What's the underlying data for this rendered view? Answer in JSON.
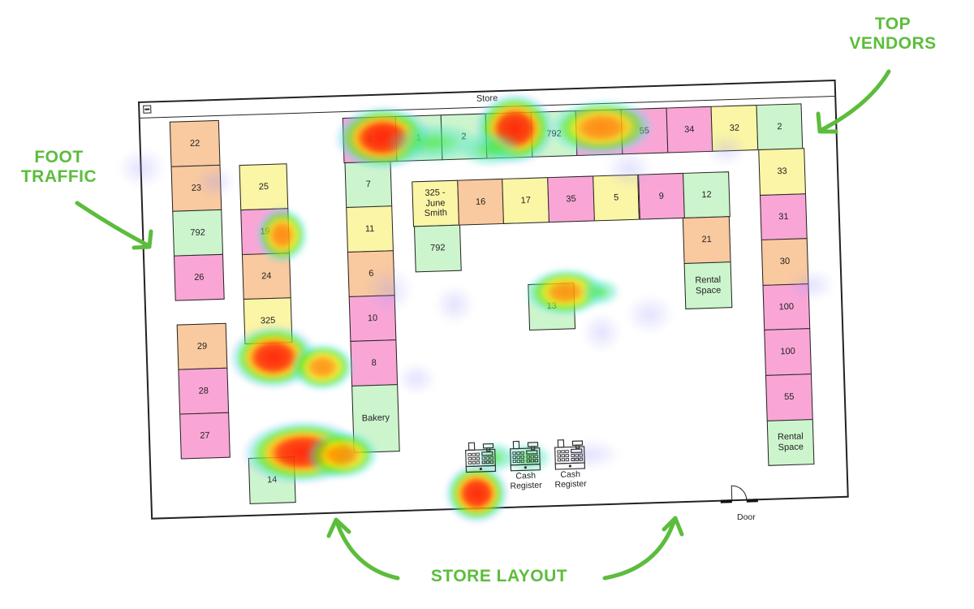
{
  "window": {
    "title": "Store",
    "minimize_icon": "minus-box-icon"
  },
  "colors": {
    "pink": "#f9a6d6",
    "orange": "#f9c99f",
    "green": "#cdf5cd",
    "yellow": "#fbf5a6",
    "annotation": "#5cbd3c"
  },
  "booths": {
    "col_a": [
      {
        "label": "22",
        "color": "orange"
      },
      {
        "label": "23",
        "color": "orange"
      },
      {
        "label": "792",
        "color": "green"
      },
      {
        "label": "26",
        "color": "pink"
      }
    ],
    "col_a2": [
      {
        "label": "29",
        "color": "orange"
      },
      {
        "label": "28",
        "color": "pink"
      },
      {
        "label": "27",
        "color": "pink"
      }
    ],
    "col_b": [
      {
        "label": "25",
        "color": "yellow"
      },
      {
        "label": "19",
        "color": "pink"
      },
      {
        "label": "24",
        "color": "orange"
      },
      {
        "label": "325",
        "color": "yellow"
      }
    ],
    "single_14": [
      {
        "label": "14",
        "color": "green"
      }
    ],
    "col_c": [
      {
        "label": "7",
        "color": "green"
      },
      {
        "label": "11",
        "color": "yellow"
      },
      {
        "label": "6",
        "color": "orange"
      },
      {
        "label": "10",
        "color": "pink"
      },
      {
        "label": "8",
        "color": "pink"
      },
      {
        "label": "Bakery",
        "color": "green"
      }
    ],
    "top_row": [
      {
        "label": "8",
        "color": "pink"
      },
      {
        "label": "1",
        "color": "green"
      },
      {
        "label": "2",
        "color": "green"
      },
      {
        "label": "",
        "color": "green"
      },
      {
        "label": "792",
        "color": "green"
      },
      {
        "label": "",
        "color": "pink"
      },
      {
        "label": "55",
        "color": "pink"
      },
      {
        "label": "34",
        "color": "pink"
      },
      {
        "label": "32",
        "color": "yellow"
      },
      {
        "label": "2",
        "color": "green"
      }
    ],
    "right_col": [
      {
        "label": "33",
        "color": "yellow"
      },
      {
        "label": "31",
        "color": "pink"
      },
      {
        "label": "30",
        "color": "orange"
      },
      {
        "label": "100",
        "color": "pink"
      },
      {
        "label": "100",
        "color": "pink"
      },
      {
        "label": "55",
        "color": "pink"
      },
      {
        "label": "Rental Space",
        "color": "green"
      }
    ],
    "inner_row": [
      {
        "label": "325 - June Smith",
        "color": "yellow"
      },
      {
        "label": "16",
        "color": "orange"
      },
      {
        "label": "17",
        "color": "yellow"
      },
      {
        "label": "35",
        "color": "pink"
      },
      {
        "label": "5",
        "color": "yellow"
      },
      {
        "label": "9",
        "color": "pink"
      },
      {
        "label": "12",
        "color": "green"
      }
    ],
    "single_792": [
      {
        "label": "792",
        "color": "green"
      }
    ],
    "col_21": [
      {
        "label": "21",
        "color": "orange"
      },
      {
        "label": "Rental Space",
        "color": "green"
      }
    ],
    "single_13": [
      {
        "label": "13",
        "color": "green"
      }
    ]
  },
  "registers": [
    {
      "label": "",
      "icon": "cash-register-icon"
    },
    {
      "label": "Cash Register",
      "icon": "cash-register-icon"
    },
    {
      "label": "Cash Register",
      "icon": "cash-register-icon"
    }
  ],
  "door": {
    "label": "Door",
    "icon": "door-swing-icon"
  },
  "annotations": {
    "foot_traffic": [
      "FOOT",
      "TRAFFIC"
    ],
    "top_vendors": [
      "TOP",
      "VENDORS"
    ],
    "store_layout": "STORE LAYOUT"
  }
}
